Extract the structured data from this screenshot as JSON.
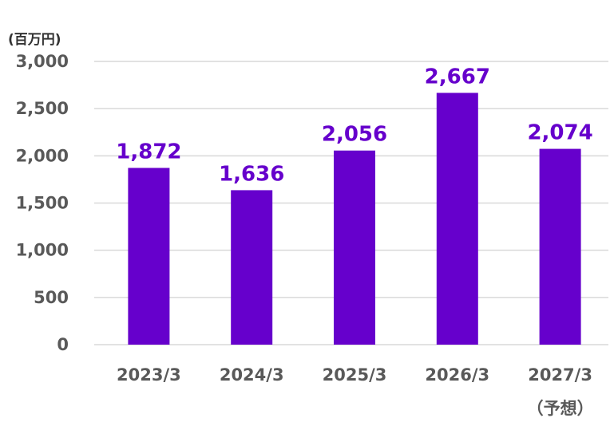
{
  "chart_data": {
    "type": "bar",
    "unit_label": "(百万円)",
    "categories": [
      "2023/3",
      "2024/3",
      "2025/3",
      "2026/3",
      "2027/3"
    ],
    "category_sublabels": [
      "",
      "",
      "",
      "",
      "（予想）"
    ],
    "values": [
      1872,
      1636,
      2056,
      2667,
      2074
    ],
    "data_labels": [
      "1,872",
      "1,636",
      "2,056",
      "2,667",
      "2,074"
    ],
    "ylim": [
      0,
      3000
    ],
    "yticks": [
      0,
      500,
      1000,
      1500,
      2000,
      2500,
      3000
    ],
    "ytick_labels": [
      "0",
      "500",
      "1,000",
      "1,500",
      "2,000",
      "2,500",
      "3,000"
    ],
    "bar_color": "#6600cc",
    "label_color": "#6600cc",
    "grid": true,
    "legend": "none"
  }
}
